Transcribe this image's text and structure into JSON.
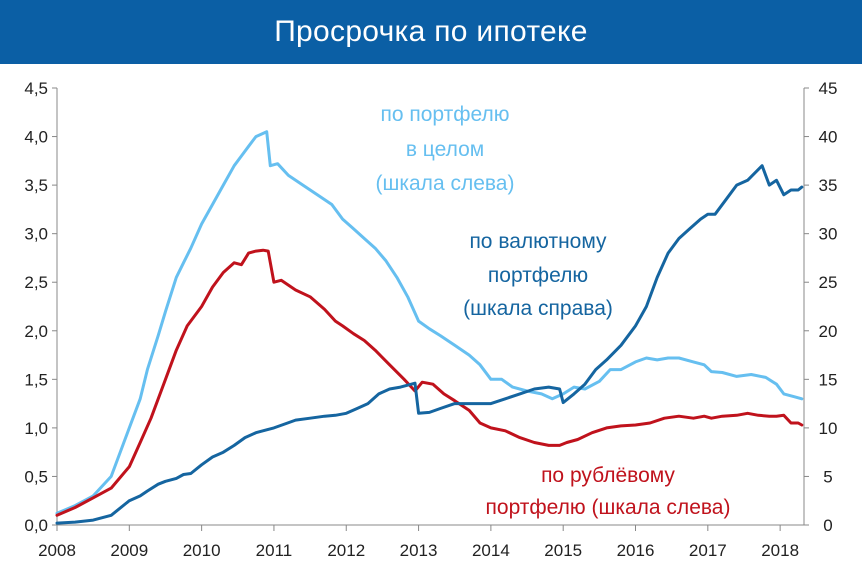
{
  "title": "Просрочка по ипотеке",
  "colors": {
    "title_bg": "#0b5fa5",
    "total": "#66bff0",
    "fx": "#1565a0",
    "rub": "#c0121c"
  },
  "chart_data": {
    "type": "line",
    "title": "Просрочка по ипотеке",
    "grid": false,
    "x_axis": {
      "ticks": [
        "2008",
        "2009",
        "2010",
        "2011",
        "2012",
        "2013",
        "2014",
        "2015",
        "2016",
        "2017",
        "2018"
      ],
      "range": [
        2008,
        2018.33
      ]
    },
    "y_left": {
      "range": [
        0,
        4.5
      ],
      "ticks": [
        "0,0",
        "0,5",
        "1,0",
        "1,5",
        "2,0",
        "2,5",
        "3,0",
        "3,5",
        "4,0",
        "4,5"
      ]
    },
    "y_right": {
      "range": [
        0,
        45
      ],
      "ticks": [
        "0",
        "5",
        "10",
        "15",
        "20",
        "25",
        "30",
        "35",
        "40",
        "45"
      ]
    },
    "annotations": {
      "total": [
        "по портфелю",
        "в целом",
        "(шкала слева)"
      ],
      "fx": [
        "по валютному",
        "портфелю",
        "(шкала справа)"
      ],
      "rub": [
        "по рублёвому",
        "портфелю (шкала слева)"
      ]
    },
    "series": [
      {
        "key": "total",
        "axis": "left",
        "x": [
          2008.0,
          2008.25,
          2008.5,
          2008.75,
          2009.0,
          2009.15,
          2009.25,
          2009.4,
          2009.5,
          2009.65,
          2009.75,
          2009.85,
          2010.0,
          2010.15,
          2010.3,
          2010.45,
          2010.55,
          2010.65,
          2010.75,
          2010.9,
          2010.95,
          2011.05,
          2011.2,
          2011.4,
          2011.6,
          2011.8,
          2011.95,
          2012.1,
          2012.25,
          2012.4,
          2012.55,
          2012.7,
          2012.85,
          2013.0,
          2013.15,
          2013.3,
          2013.5,
          2013.7,
          2013.85,
          2014.0,
          2014.15,
          2014.3,
          2014.5,
          2014.7,
          2014.85,
          2015.0,
          2015.15,
          2015.3,
          2015.5,
          2015.65,
          2015.8,
          2016.0,
          2016.15,
          2016.3,
          2016.45,
          2016.6,
          2016.8,
          2016.95,
          2017.05,
          2017.2,
          2017.4,
          2017.6,
          2017.8,
          2017.95,
          2018.05,
          2018.2,
          2018.3
        ],
        "y": [
          0.12,
          0.2,
          0.3,
          0.5,
          1.0,
          1.3,
          1.6,
          1.95,
          2.2,
          2.55,
          2.7,
          2.85,
          3.1,
          3.3,
          3.5,
          3.7,
          3.8,
          3.9,
          4.0,
          4.05,
          3.7,
          3.72,
          3.6,
          3.5,
          3.4,
          3.3,
          3.15,
          3.05,
          2.95,
          2.85,
          2.72,
          2.55,
          2.35,
          2.1,
          2.02,
          1.95,
          1.85,
          1.75,
          1.65,
          1.5,
          1.5,
          1.42,
          1.38,
          1.35,
          1.3,
          1.35,
          1.42,
          1.4,
          1.48,
          1.6,
          1.6,
          1.68,
          1.72,
          1.7,
          1.72,
          1.72,
          1.68,
          1.65,
          1.58,
          1.57,
          1.53,
          1.55,
          1.52,
          1.45,
          1.35,
          1.32,
          1.3
        ]
      },
      {
        "key": "rub",
        "axis": "left",
        "x": [
          2008.0,
          2008.25,
          2008.5,
          2008.75,
          2009.0,
          2009.15,
          2009.3,
          2009.5,
          2009.65,
          2009.8,
          2010.0,
          2010.15,
          2010.3,
          2010.45,
          2010.55,
          2010.65,
          2010.75,
          2010.85,
          2010.92,
          2011.0,
          2011.1,
          2011.3,
          2011.5,
          2011.7,
          2011.85,
          2011.95,
          2012.1,
          2012.25,
          2012.4,
          2012.6,
          2012.8,
          2012.95,
          2013.05,
          2013.2,
          2013.35,
          2013.5,
          2013.7,
          2013.85,
          2014.0,
          2014.2,
          2014.4,
          2014.6,
          2014.8,
          2014.95,
          2015.05,
          2015.2,
          2015.4,
          2015.6,
          2015.8,
          2016.0,
          2016.2,
          2016.4,
          2016.6,
          2016.8,
          2016.95,
          2017.05,
          2017.2,
          2017.4,
          2017.55,
          2017.7,
          2017.85,
          2017.95,
          2018.05,
          2018.15,
          2018.25,
          2018.3
        ],
        "y": [
          0.1,
          0.18,
          0.28,
          0.38,
          0.6,
          0.85,
          1.1,
          1.5,
          1.8,
          2.05,
          2.25,
          2.45,
          2.6,
          2.7,
          2.68,
          2.8,
          2.82,
          2.83,
          2.82,
          2.5,
          2.52,
          2.42,
          2.35,
          2.22,
          2.1,
          2.05,
          1.97,
          1.9,
          1.8,
          1.65,
          1.5,
          1.38,
          1.47,
          1.45,
          1.35,
          1.28,
          1.18,
          1.05,
          1.0,
          0.97,
          0.9,
          0.85,
          0.82,
          0.82,
          0.85,
          0.88,
          0.95,
          1.0,
          1.02,
          1.03,
          1.05,
          1.1,
          1.12,
          1.1,
          1.12,
          1.1,
          1.12,
          1.13,
          1.15,
          1.13,
          1.12,
          1.12,
          1.13,
          1.05,
          1.05,
          1.03
        ]
      },
      {
        "key": "fx",
        "axis": "right",
        "x": [
          2008.0,
          2008.25,
          2008.5,
          2008.75,
          2009.0,
          2009.15,
          2009.25,
          2009.4,
          2009.5,
          2009.65,
          2009.75,
          2009.85,
          2010.0,
          2010.15,
          2010.3,
          2010.45,
          2010.6,
          2010.75,
          2010.9,
          2011.0,
          2011.15,
          2011.3,
          2011.5,
          2011.7,
          2011.85,
          2012.0,
          2012.15,
          2012.3,
          2012.45,
          2012.6,
          2012.75,
          2012.9,
          2012.95,
          2013.0,
          2013.15,
          2013.3,
          2013.5,
          2013.7,
          2013.9,
          2014.0,
          2014.2,
          2014.4,
          2014.6,
          2014.8,
          2014.95,
          2015.0,
          2015.15,
          2015.3,
          2015.45,
          2015.6,
          2015.8,
          2016.0,
          2016.15,
          2016.3,
          2016.45,
          2016.6,
          2016.75,
          2016.9,
          2017.0,
          2017.1,
          2017.25,
          2017.4,
          2017.55,
          2017.75,
          2017.85,
          2017.95,
          2018.05,
          2018.15,
          2018.25,
          2018.3
        ],
        "y": [
          0.2,
          0.3,
          0.5,
          1.0,
          2.5,
          3.0,
          3.5,
          4.2,
          4.5,
          4.8,
          5.2,
          5.3,
          6.2,
          7.0,
          7.5,
          8.2,
          9.0,
          9.5,
          9.8,
          10.0,
          10.4,
          10.8,
          11.0,
          11.2,
          11.3,
          11.5,
          12.0,
          12.5,
          13.5,
          14.0,
          14.2,
          14.5,
          14.6,
          11.5,
          11.6,
          12.0,
          12.5,
          12.5,
          12.5,
          12.5,
          13.0,
          13.5,
          14.0,
          14.2,
          14.0,
          12.6,
          13.5,
          14.5,
          16.0,
          17.0,
          18.5,
          20.5,
          22.5,
          25.5,
          28.0,
          29.5,
          30.5,
          31.5,
          32.0,
          32.0,
          33.5,
          35.0,
          35.5,
          37.0,
          35.0,
          35.5,
          34.0,
          34.5,
          34.5,
          34.8
        ]
      }
    ]
  }
}
